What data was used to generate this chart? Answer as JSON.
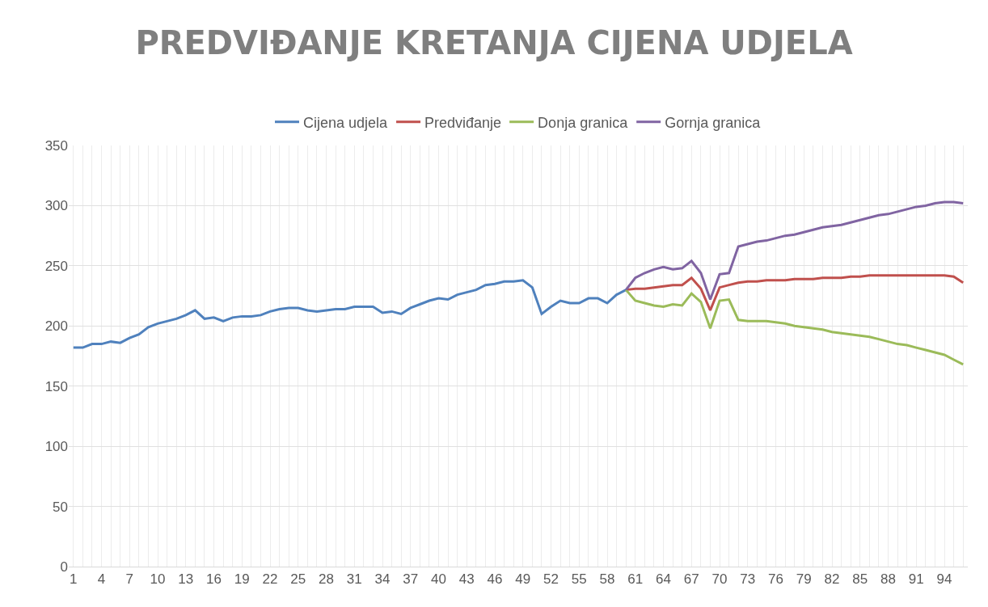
{
  "chart_data": {
    "type": "line",
    "title": "PREDVIĐANJE KRETANJA CIJENA UDJELA",
    "categories": [
      "1",
      null,
      null,
      "4",
      null,
      null,
      "7",
      null,
      null,
      "10",
      null,
      null,
      "13",
      null,
      null,
      "16",
      null,
      null,
      "19",
      null,
      null,
      "22",
      null,
      null,
      "25",
      null,
      null,
      "28",
      null,
      null,
      "31",
      null,
      null,
      "34",
      null,
      null,
      "37",
      null,
      null,
      "40",
      null,
      null,
      "43",
      null,
      null,
      "46",
      null,
      null,
      "49",
      null,
      null,
      "52",
      null,
      null,
      "55",
      null,
      null,
      "58",
      null,
      null,
      "61",
      null,
      null,
      "64",
      null,
      null,
      "67",
      null,
      null,
      "70",
      null,
      null,
      "73",
      null,
      null,
      "76",
      null,
      null,
      "79",
      null,
      null,
      "82",
      null,
      null,
      "85",
      null,
      null,
      "88",
      null,
      null,
      "91",
      null,
      null,
      "94",
      null,
      null
    ],
    "series": [
      {
        "name": "Cijena udjela",
        "color": "#4f81bd",
        "values": [
          182,
          182,
          185,
          185,
          187,
          186,
          190,
          193,
          199,
          202,
          204,
          206,
          209,
          213,
          206,
          207,
          204,
          207,
          208,
          208,
          209,
          212,
          214,
          215,
          215,
          213,
          212,
          213,
          214,
          214,
          216,
          216,
          216,
          211,
          212,
          210,
          215,
          218,
          221,
          223,
          222,
          226,
          228,
          230,
          234,
          235,
          237,
          237,
          238,
          232,
          210,
          216,
          221,
          219,
          219,
          223,
          223,
          219,
          226,
          230,
          null,
          null,
          null,
          null,
          null,
          null,
          null,
          null,
          null,
          null,
          null,
          null,
          null,
          null,
          null,
          null,
          null,
          null,
          null,
          null,
          null,
          null,
          null,
          null,
          null,
          null,
          null,
          null,
          null,
          null,
          null,
          null,
          null,
          null,
          null,
          null
        ]
      },
      {
        "name": "Predviđanje",
        "color": "#c0504d",
        "values": [
          null,
          null,
          null,
          null,
          null,
          null,
          null,
          null,
          null,
          null,
          null,
          null,
          null,
          null,
          null,
          null,
          null,
          null,
          null,
          null,
          null,
          null,
          null,
          null,
          null,
          null,
          null,
          null,
          null,
          null,
          null,
          null,
          null,
          null,
          null,
          null,
          null,
          null,
          null,
          null,
          null,
          null,
          null,
          null,
          null,
          null,
          null,
          null,
          null,
          null,
          null,
          null,
          null,
          null,
          null,
          null,
          null,
          null,
          null,
          230,
          231,
          231,
          232,
          233,
          234,
          234,
          240,
          231,
          213,
          232,
          234,
          236,
          237,
          237,
          238,
          238,
          238,
          239,
          239,
          239,
          240,
          240,
          240,
          241,
          241,
          242,
          242,
          242,
          242,
          242,
          242,
          242,
          242,
          242,
          241,
          236
        ]
      },
      {
        "name": "Donja granica",
        "color": "#9bbb59",
        "values": [
          null,
          null,
          null,
          null,
          null,
          null,
          null,
          null,
          null,
          null,
          null,
          null,
          null,
          null,
          null,
          null,
          null,
          null,
          null,
          null,
          null,
          null,
          null,
          null,
          null,
          null,
          null,
          null,
          null,
          null,
          null,
          null,
          null,
          null,
          null,
          null,
          null,
          null,
          null,
          null,
          null,
          null,
          null,
          null,
          null,
          null,
          null,
          null,
          null,
          null,
          null,
          null,
          null,
          null,
          null,
          null,
          null,
          null,
          null,
          230,
          221,
          219,
          217,
          216,
          218,
          217,
          227,
          220,
          198,
          221,
          222,
          205,
          204,
          204,
          204,
          203,
          202,
          200,
          199,
          198,
          197,
          195,
          194,
          193,
          192,
          191,
          189,
          187,
          185,
          184,
          182,
          180,
          178,
          176,
          172,
          168
        ]
      },
      {
        "name": "Gornja granica",
        "color": "#8064a2",
        "values": [
          null,
          null,
          null,
          null,
          null,
          null,
          null,
          null,
          null,
          null,
          null,
          null,
          null,
          null,
          null,
          null,
          null,
          null,
          null,
          null,
          null,
          null,
          null,
          null,
          null,
          null,
          null,
          null,
          null,
          null,
          null,
          null,
          null,
          null,
          null,
          null,
          null,
          null,
          null,
          null,
          null,
          null,
          null,
          null,
          null,
          null,
          null,
          null,
          null,
          null,
          null,
          null,
          null,
          null,
          null,
          null,
          null,
          null,
          null,
          230,
          240,
          244,
          247,
          249,
          247,
          248,
          254,
          244,
          222,
          243,
          244,
          266,
          268,
          270,
          271,
          273,
          275,
          276,
          278,
          280,
          282,
          283,
          284,
          286,
          288,
          290,
          292,
          293,
          295,
          297,
          299,
          300,
          302,
          303,
          303,
          302
        ]
      }
    ],
    "ylim": [
      0,
      350
    ],
    "yticks": [
      0,
      50,
      100,
      150,
      200,
      250,
      300,
      350
    ],
    "grid": true,
    "legend": "top",
    "line_style": "solid",
    "marker": "none"
  }
}
